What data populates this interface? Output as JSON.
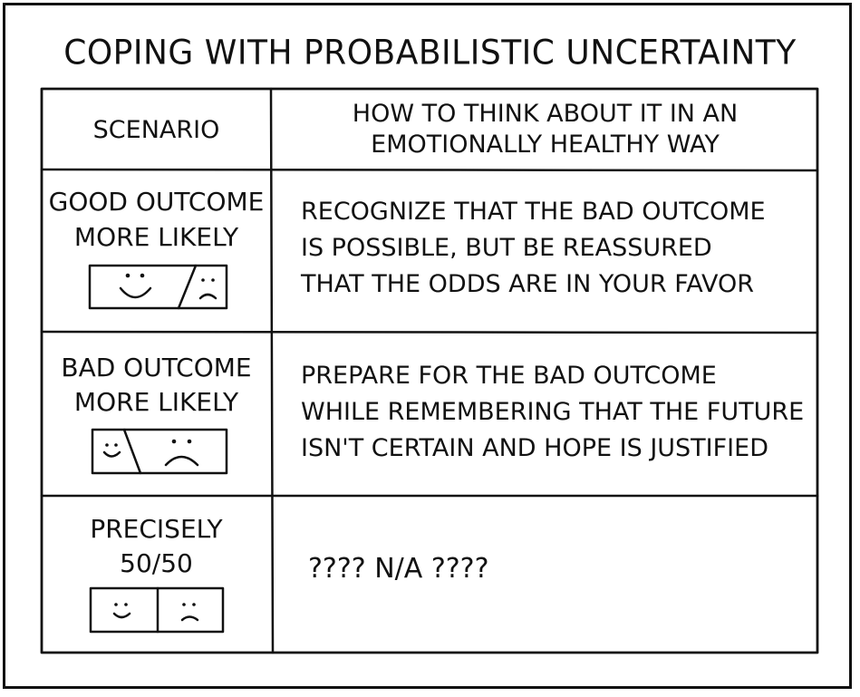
{
  "title": "COPING WITH PROBABILISTIC UNCERTAINTY",
  "header": {
    "scenario": "SCENARIO",
    "thinking_line1": "HOW TO THINK ABOUT IT IN AN",
    "thinking_line2": "EMOTIONALLY HEALTHY WAY"
  },
  "rows": [
    {
      "scenario_line1": "GOOD OUTCOME",
      "scenario_line2": "MORE LIKELY",
      "desc_line1": "RECOGNIZE THAT THE BAD OUTCOME",
      "desc_line2": "IS POSSIBLE, BUT BE REASSURED",
      "desc_line3": "THAT THE ODDS ARE IN YOUR FAVOR",
      "good_fraction": 0.66
    },
    {
      "scenario_line1": "BAD OUTCOME",
      "scenario_line2": "MORE LIKELY",
      "desc_line1": "PREPARE FOR THE BAD OUTCOME",
      "desc_line2": "WHILE REMEMBERING THAT THE FUTURE",
      "desc_line3": "ISN'T CERTAIN AND HOPE IS JUSTIFIED",
      "good_fraction": 0.34
    },
    {
      "scenario_line1": "PRECISELY",
      "scenario_line2": "50/50",
      "desc_line1": "???? N/A ????",
      "good_fraction": 0.5
    }
  ]
}
